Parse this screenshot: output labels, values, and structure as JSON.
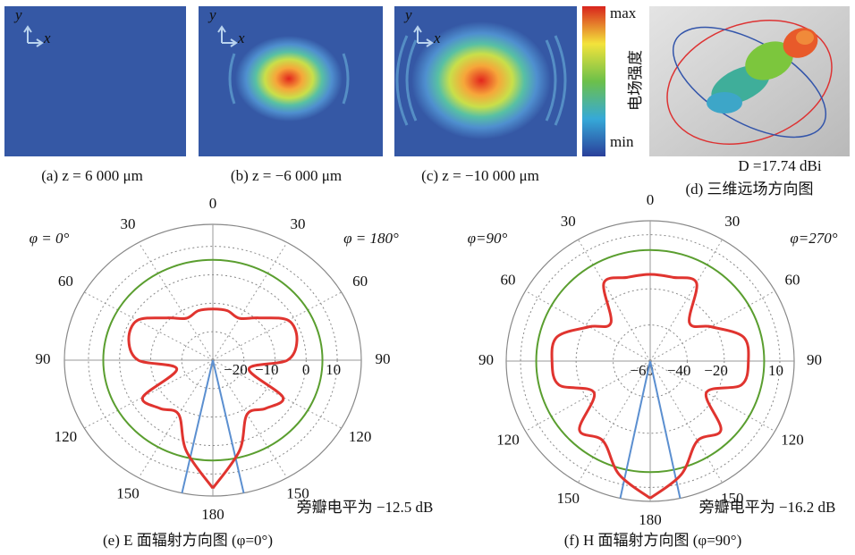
{
  "panels": [
    {
      "caption": "(a) z = 6 000 μm",
      "axis_x": "x",
      "axis_y": "y"
    },
    {
      "caption": "(b) z = −6 000 μm",
      "axis_x": "x",
      "axis_y": "y"
    },
    {
      "caption": "(c) z = −10 000 μm",
      "axis_x": "x",
      "axis_y": "y"
    },
    {
      "caption": "(d) 三维远场方向图",
      "label": "D =17.74 dBi"
    }
  ],
  "colorbar": {
    "max": "max",
    "min": "min",
    "label": "电场强度"
  },
  "chart_data": [
    {
      "type": "polar",
      "caption": "(e) E 面辐射方向图 (φ=0°)",
      "side_labels": [
        "φ = 0°",
        "φ = 180°"
      ],
      "annotation": "旁瓣电平为 −12.5 dB",
      "rlim": [
        -30,
        17.74
      ],
      "rticks": [
        {
          "value": -20,
          "label": "−20"
        },
        {
          "value": -10,
          "label": "−10"
        },
        0,
        10
      ],
      "thetaticks": [
        {
          "value": -150,
          "label": "150"
        },
        {
          "value": -120,
          "label": "120"
        },
        {
          "value": -90,
          "label": "90"
        },
        {
          "value": -60,
          "label": "60"
        },
        {
          "value": -30,
          "label": "30"
        },
        0,
        30,
        60,
        90,
        120,
        150,
        180
      ],
      "theta": [
        -180,
        -165,
        -150,
        -135,
        -120,
        -105,
        -90,
        -75,
        -60,
        -45,
        -30,
        -15,
        0,
        15,
        30,
        45,
        60,
        75,
        90,
        105,
        120,
        135,
        150,
        165,
        180
      ],
      "series": [
        {
          "color": "#e0342f",
          "values": [
            15,
            3,
            -8,
            -6,
            -4,
            -18,
            -6,
            -2,
            -2,
            -9,
            -13,
            -12,
            -12,
            -12,
            -13,
            -9,
            -2,
            -2,
            -6,
            -18,
            -4,
            -6,
            -8,
            3,
            15
          ]
        }
      ],
      "reference": {
        "color": "#5a9e2f",
        "value": 5.24
      },
      "beam": {
        "color": "#5b8fd0",
        "values": [
          -168,
          168
        ]
      }
    },
    {
      "type": "polar",
      "caption": "(f) H 面辐射方向图 (φ=90°)",
      "side_labels": [
        "φ=90°",
        "φ=270°"
      ],
      "annotation": "旁瓣电平为 −16.2 dB",
      "rlim": [
        -60,
        17.74
      ],
      "rticks": [
        {
          "value": -60,
          "label": "−60"
        },
        {
          "value": -40,
          "label": "−40"
        },
        {
          "value": -20,
          "label": "−20"
        },
        10
      ],
      "thetaticks": [
        {
          "value": -150,
          "label": "150"
        },
        {
          "value": -120,
          "label": "120"
        },
        {
          "value": -90,
          "label": "90"
        },
        {
          "value": -60,
          "label": "60"
        },
        {
          "value": -30,
          "label": "30"
        },
        0,
        30,
        60,
        90,
        120,
        150,
        180
      ],
      "theta": [
        -180,
        -165,
        -150,
        -135,
        -120,
        -105,
        -90,
        -75,
        -60,
        -45,
        -30,
        -15,
        0,
        15,
        30,
        45,
        60,
        75,
        90,
        105,
        120,
        135,
        150,
        165,
        180
      ],
      "series": [
        {
          "color": "#e0342f",
          "values": [
            16,
            5,
            -9,
            -6,
            -25,
            -9,
            -7,
            -8,
            -22,
            -30,
            -10,
            -12,
            -12,
            -12,
            -10,
            -30,
            -22,
            -8,
            -7,
            -9,
            -25,
            -6,
            -9,
            5,
            16
          ]
        }
      ],
      "reference": {
        "color": "#5a9e2f",
        "value": 1.54
      },
      "beam": {
        "color": "#5b8fd0",
        "values": [
          -168,
          168
        ]
      }
    }
  ]
}
